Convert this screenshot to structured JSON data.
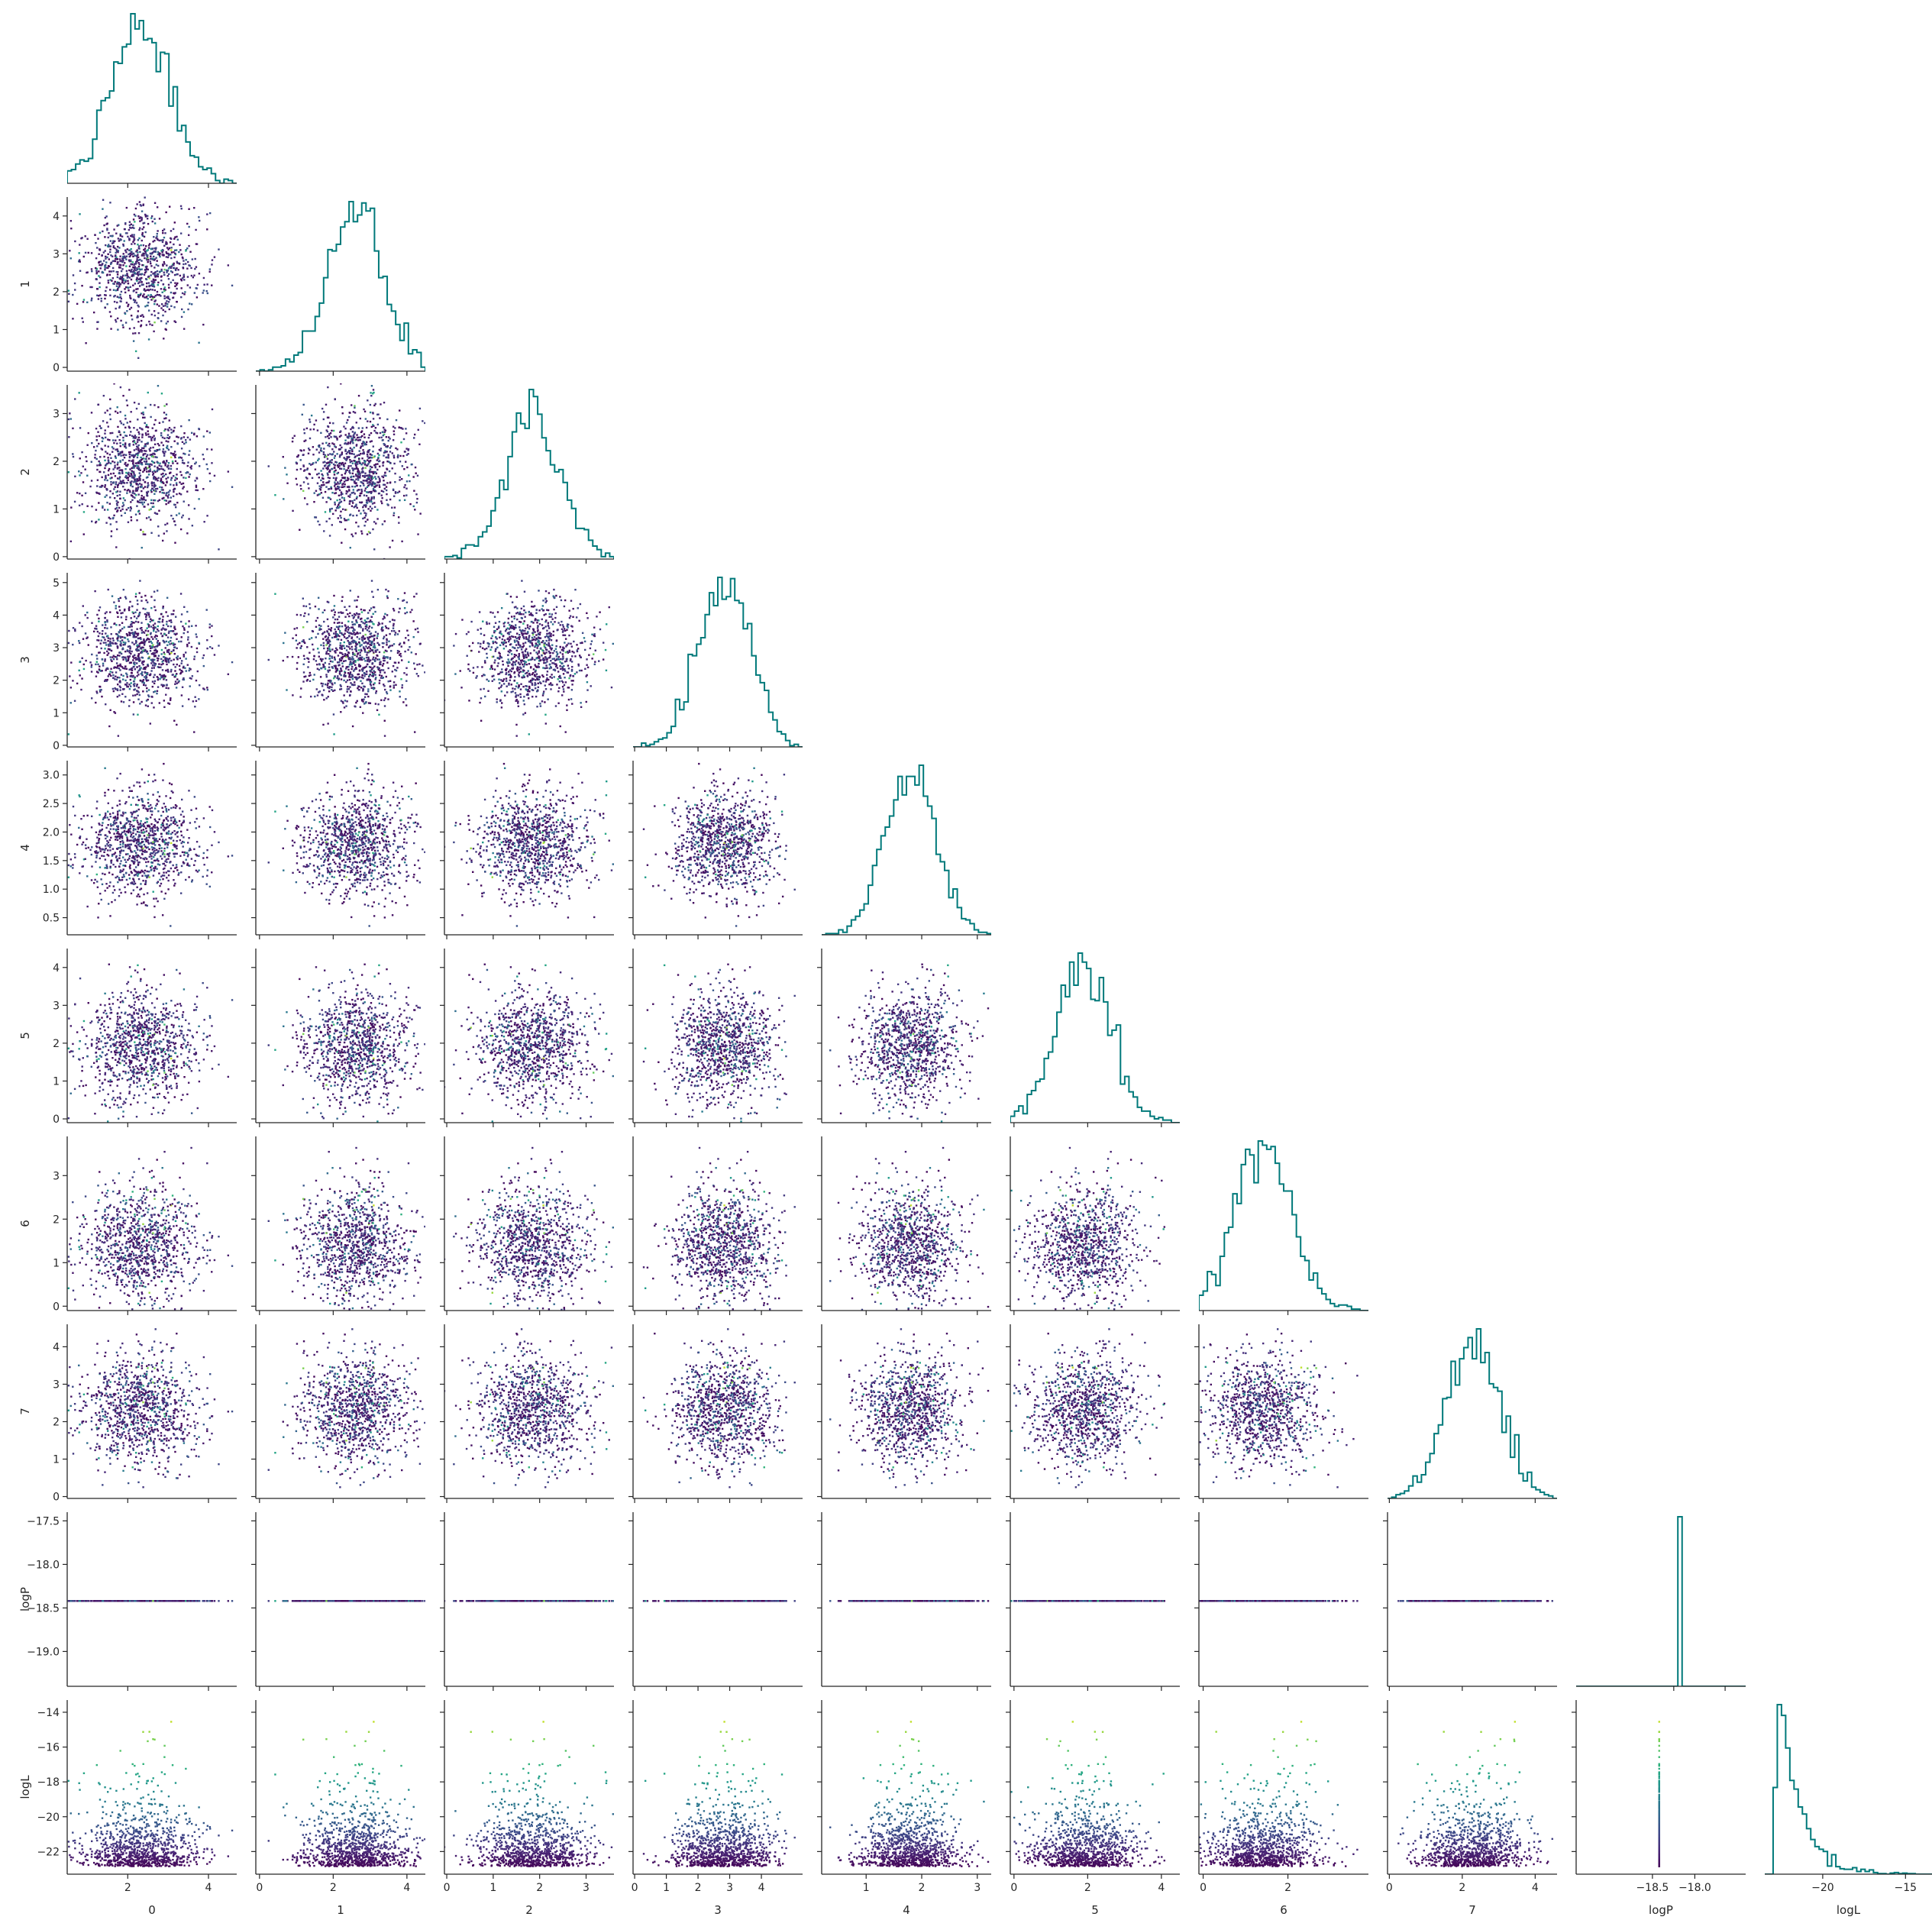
{
  "chart_data": {
    "type": "scatter",
    "layout": "corner-pairplot",
    "variables": [
      "0",
      "1",
      "2",
      "3",
      "4",
      "5",
      "6",
      "7",
      "logP",
      "logL"
    ],
    "diagonal": "step-histogram",
    "off_diagonal": "scatter",
    "color_by": "logL",
    "colormap": "viridis",
    "hist_color": "#00797a",
    "grid": false,
    "n_samples": 2000,
    "distributions": {
      "0": {
        "mean": 2.3,
        "sd": 0.75
      },
      "1": {
        "mean": 2.6,
        "sd": 0.75
      },
      "2": {
        "mean": 1.85,
        "sd": 0.6
      },
      "3": {
        "mean": 2.85,
        "sd": 0.8
      },
      "4": {
        "mean": 1.8,
        "sd": 0.45
      },
      "5": {
        "mean": 1.85,
        "sd": 0.75
      },
      "6": {
        "mean": 1.45,
        "sd": 0.65
      },
      "7": {
        "mean": 2.3,
        "sd": 0.75
      },
      "logP": {
        "constant": -18.42
      },
      "logL": {
        "min": -23.0,
        "max": -13.2
      }
    },
    "axis_limits": {
      "0": [
        0.5,
        4.7
      ],
      "1": [
        -0.1,
        4.5
      ],
      "2": [
        -0.05,
        3.6
      ],
      "3": [
        -0.05,
        5.3
      ],
      "4": [
        0.2,
        3.25
      ],
      "5": [
        -0.1,
        4.5
      ],
      "6": [
        -0.1,
        3.9
      ],
      "7": [
        -0.05,
        4.6
      ],
      "logP": [
        -19.4,
        -17.4
      ],
      "logL": [
        -23.3,
        -13.3
      ]
    },
    "diag_axis_limits": {
      "logP": [
        -19.45,
        -17.8
      ],
      "logL": [
        -23.5,
        -13.4
      ]
    },
    "ticks": {
      "0": [
        2,
        4
      ],
      "1": [
        0,
        1,
        2,
        3,
        4
      ],
      "2": [
        0,
        1,
        2,
        3
      ],
      "3": [
        0,
        1,
        2,
        3,
        4,
        5
      ],
      "4": [
        0.5,
        1.0,
        1.5,
        2.0,
        2.5,
        3.0
      ],
      "5": [
        0,
        1,
        2,
        3,
        4
      ],
      "6": [
        0,
        1,
        2,
        3
      ],
      "7": [
        0,
        1,
        2,
        3,
        4
      ],
      "logP": [
        -17.5,
        -18.0,
        -18.5,
        -19.0
      ],
      "logL": [
        -14,
        -16,
        -18,
        -20,
        -22
      ]
    },
    "x_ticks": {
      "0": [
        2,
        4
      ],
      "1": [
        0,
        2,
        4
      ],
      "2": [
        0,
        1,
        2,
        3
      ],
      "3": [
        0,
        1,
        2,
        3,
        4
      ],
      "4": [
        1,
        2,
        3
      ],
      "5": [
        0,
        2,
        4
      ],
      "6": [
        0,
        2
      ],
      "7": [
        0,
        2,
        4
      ],
      "logP": [
        -18.5,
        -18.0
      ],
      "logL": [
        -20,
        -15
      ]
    },
    "y_tick_labels": {
      "1": [
        "0",
        "1",
        "2",
        "3",
        "4"
      ],
      "2": [
        "0",
        "1",
        "2",
        "3"
      ],
      "3": [
        "0",
        "1",
        "2",
        "3",
        "4",
        "5"
      ],
      "4": [
        "0.5",
        "1.0",
        "1.5",
        "2.0",
        "2.5",
        "3.0"
      ],
      "5": [
        "0",
        "1",
        "2",
        "3",
        "4"
      ],
      "6": [
        "0",
        "1",
        "2",
        "3"
      ],
      "7": [
        "0",
        "1",
        "2",
        "3",
        "4"
      ],
      "logP": [
        "−17.5",
        "−18.0",
        "−18.5",
        "−19.0"
      ],
      "logL": [
        "−14",
        "−16",
        "−18",
        "−20",
        "−22"
      ]
    },
    "x_tick_labels": {
      "0": [
        "2",
        "4"
      ],
      "1": [
        "0",
        "2",
        "4"
      ],
      "2": [
        "0",
        "1",
        "2",
        "3"
      ],
      "3": [
        "0",
        "1",
        "2",
        "3",
        "4"
      ],
      "4": [
        "1",
        "2",
        "3"
      ],
      "5": [
        "0",
        "2",
        "4"
      ],
      "6": [
        "0",
        "2"
      ],
      "7": [
        "0",
        "2",
        "4"
      ],
      "logP": [
        "−18.5",
        "−18.0"
      ],
      "logL": [
        "−20",
        "−15"
      ]
    },
    "axis_labels": [
      "0",
      "1",
      "2",
      "3",
      "4",
      "5",
      "6",
      "7",
      "logP",
      "logL"
    ]
  }
}
